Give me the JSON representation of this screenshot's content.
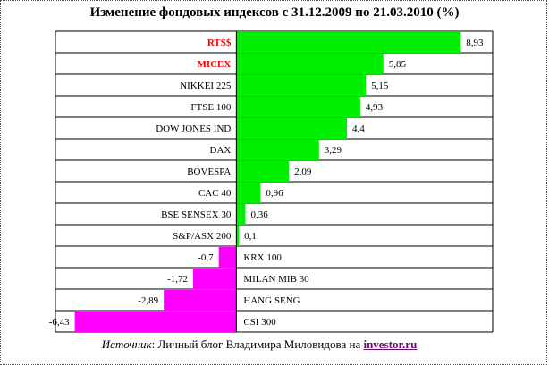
{
  "title": "Изменение фондовых индексов с 31.12.2009 по 21.03.2010 (%)",
  "source": {
    "label": "Источник",
    "separator": ":",
    "text": " Личный блог Владимира Миловидова на ",
    "link": "investor.ru"
  },
  "colors": {
    "positive": "#00ee00",
    "negative": "#ff00ff",
    "highlight_label": "#ff0000",
    "grid": "#000000"
  },
  "chart_data": {
    "type": "bar",
    "orientation": "horizontal",
    "title": "Изменение фондовых индексов с 31.12.2009 по 21.03.2010 (%)",
    "xlabel": "",
    "ylabel": "",
    "xlim": [
      -7.2,
      10.2
    ],
    "grid": true,
    "categories": [
      "RTS$",
      "MICEX",
      "NIKKEI 225",
      "FTSE 100",
      "DOW JONES IND",
      "DAX",
      "BOVESPA",
      "CAC 40",
      "BSE SENSEX 30",
      "S&P/ASX 200",
      "KRX 100",
      "MILAN MIB 30",
      "HANG SENG",
      "CSI 300"
    ],
    "values": [
      8.93,
      5.85,
      5.15,
      4.93,
      4.4,
      3.29,
      2.09,
      0.96,
      0.36,
      0.1,
      -0.7,
      -1.72,
      -2.89,
      -6.43
    ],
    "value_labels": [
      "8,93",
      "5,85",
      "5,15",
      "4,93",
      "4,4",
      "3,29",
      "2,09",
      "0,96",
      "0,36",
      "0,1",
      "-0,7",
      "-1,72",
      "-2,89",
      "-6,43"
    ],
    "highlighted": [
      "RTS$",
      "MICEX"
    ]
  }
}
